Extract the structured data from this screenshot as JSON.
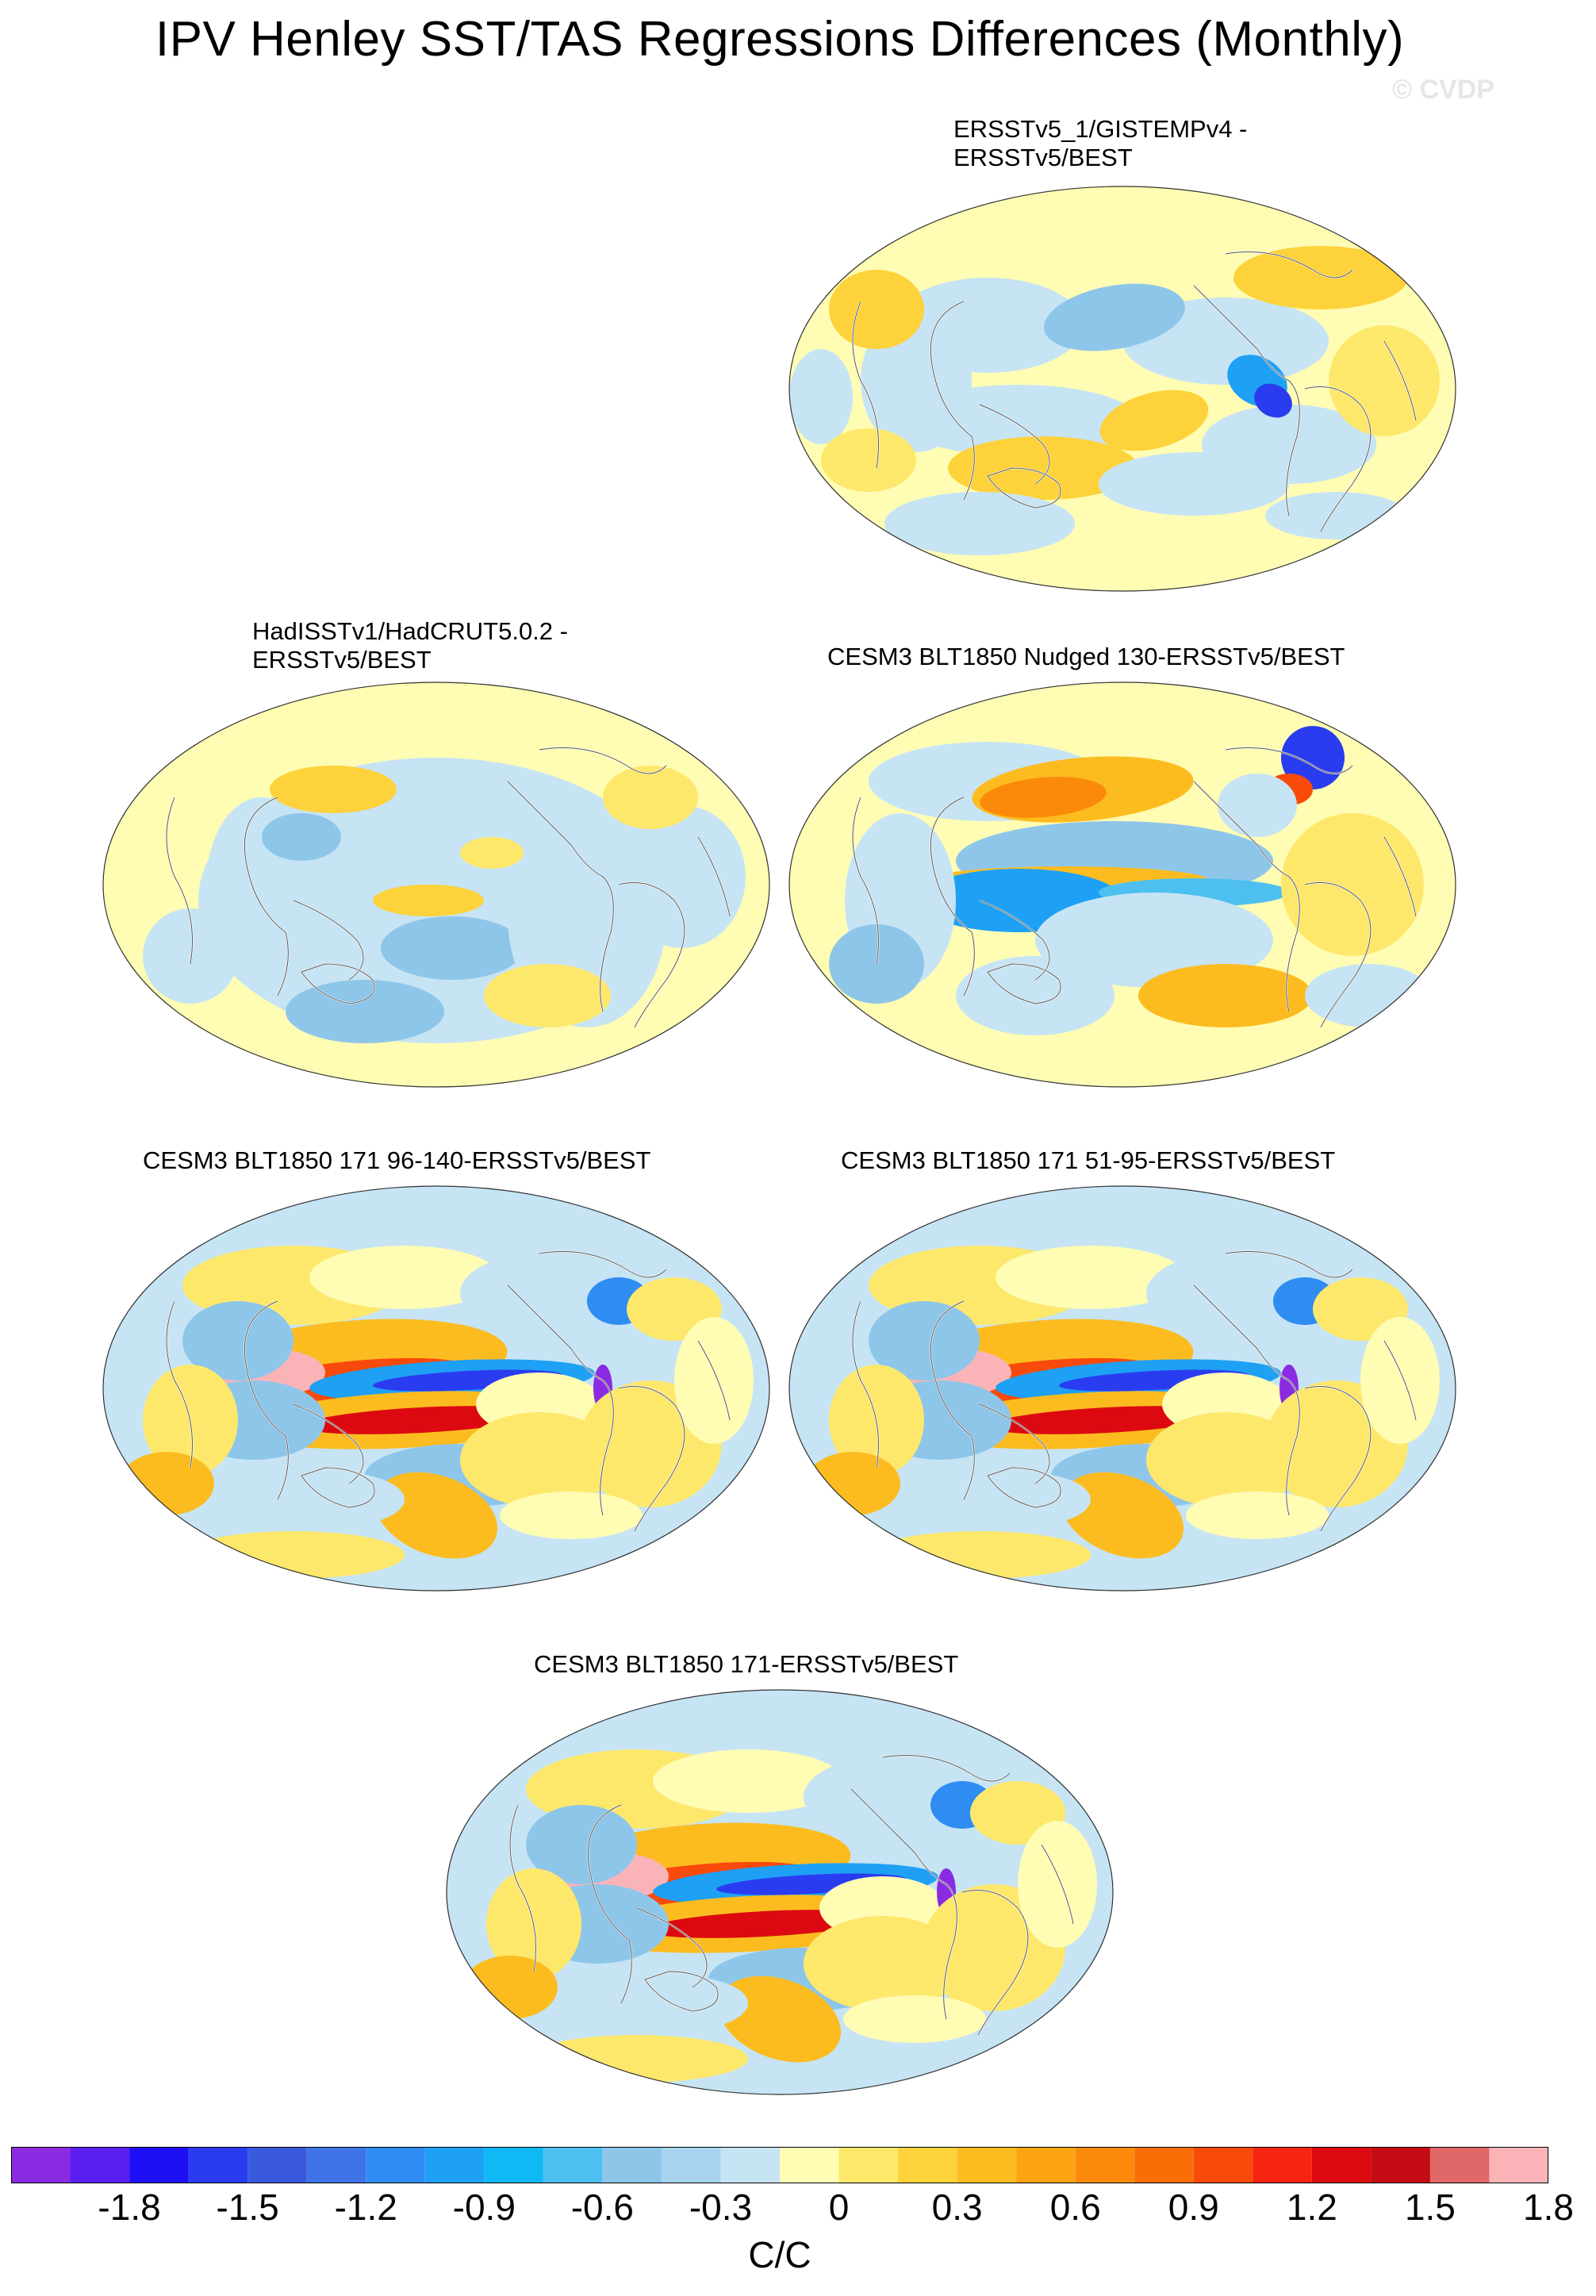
{
  "title": "IPV Henley SST/TAS Regressions Differences (Monthly)",
  "copyright": "© CVDP",
  "panels": [
    {
      "label": "ERSSTv5_1/GISTEMPv4 -\nERSSTv5/BEST",
      "pattern": "weak-mixed"
    },
    {
      "label": "HadISSTv1/HadCRUT5.0.2 -\nERSSTv5/BEST",
      "pattern": "weak-cool"
    },
    {
      "label": "CESM3 BLT1850 Nudged 130-ERSSTv5/BEST",
      "pattern": "moderate"
    },
    {
      "label": "CESM3 BLT1850 171 96-140-ERSSTv5/BEST",
      "pattern": "strong"
    },
    {
      "label": "CESM3 BLT1850 171 51-95-ERSSTv5/BEST",
      "pattern": "strong"
    },
    {
      "label": "CESM3 BLT1850 171-ERSSTv5/BEST",
      "pattern": "strong"
    }
  ],
  "colorbar": {
    "unit": "C/C",
    "tick_labels": [
      "-1.8",
      "-1.5",
      "-1.2",
      "-0.9",
      "-0.6",
      "-0.3",
      "0",
      "0.3",
      "0.6",
      "0.9",
      "1.2",
      "1.5",
      "1.8"
    ],
    "colors": [
      "#8a2be2",
      "#5a1ef0",
      "#1e10f5",
      "#2a3cf0",
      "#3a5ade",
      "#3e74e8",
      "#2f8cf2",
      "#1ea0f5",
      "#10b8f5",
      "#4ec0f0",
      "#8ec6ea",
      "#a8d4f0",
      "#c6e4f4",
      "#fffcb4",
      "#fde86c",
      "#fdd23a",
      "#fcbc20",
      "#fca414",
      "#fb8a0a",
      "#fa6e08",
      "#f84a0a",
      "#f62410",
      "#dc0a10",
      "#c40a12",
      "#e06868",
      "#fab4b8"
    ]
  }
}
